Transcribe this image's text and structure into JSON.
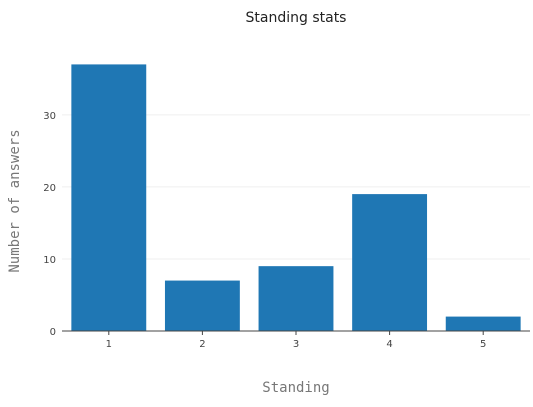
{
  "chart_data": {
    "type": "bar",
    "title": "Standing stats",
    "xlabel": "Standing",
    "ylabel": "Number of answers",
    "categories": [
      "1",
      "2",
      "3",
      "4",
      "5"
    ],
    "values": [
      37,
      7,
      9,
      19,
      2
    ],
    "ylim": [
      0,
      39
    ],
    "yticks": [
      0,
      10,
      20,
      30
    ],
    "grid": true,
    "bar_color": "#1f77b4"
  }
}
